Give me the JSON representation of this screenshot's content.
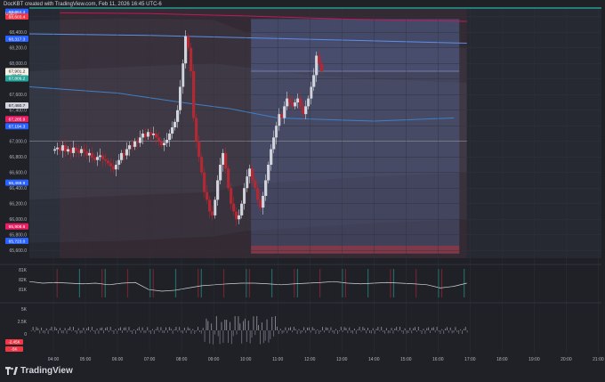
{
  "header": {
    "text": "DocKBT created with TradingView.com, Feb 11, 2026 16:45 UTC-6",
    "quote_unit": "USDT"
  },
  "footer": {
    "brand": "TradingView"
  },
  "colors": {
    "background": "#1f2127",
    "up_candle": "#d1d4dc",
    "down_candle": "#b22833",
    "red_band": "#f23645",
    "blue_line": "#4a7fd6",
    "position_box": "#5b6fa8",
    "position_stop": "#e04c63",
    "teal": "#26a69a"
  },
  "chart_data": [
    {
      "type": "candlestick",
      "pane": "price",
      "ylabel": "USDT",
      "ylim": [
        65500,
        68700
      ],
      "y_ticks": [
        65600,
        65800,
        66000,
        66200,
        66400,
        66600,
        66800,
        67000,
        67200,
        67400,
        67600,
        67800,
        68000,
        68200,
        68400,
        68600
      ],
      "x_tick_labels": [
        "04:00",
        "05:00",
        "06:00",
        "07:00",
        "08:00",
        "09:00",
        "10:00",
        "11:00",
        "12:00",
        "13:00",
        "14:00",
        "15:00",
        "16:00",
        "17:00",
        "18:00",
        "19:00",
        "20:00",
        "21:00"
      ],
      "x_range_hours": [
        3.25,
        21.1
      ],
      "price_badges": [
        {
          "label": "68,664.3",
          "color": "#2962ff"
        },
        {
          "label": "68,603.4",
          "color": "#f23645"
        },
        {
          "label": "68,317.3",
          "color": "#2962ff"
        },
        {
          "label": "67,901.2",
          "sub": "02:55",
          "color": "#f5f0e6"
        },
        {
          "label": "67,809.2",
          "color": "#26a69a"
        },
        {
          "label": "67,460.7",
          "color": "#d1d4dc"
        },
        {
          "label": "67,285.9",
          "color": "#e91e63"
        },
        {
          "label": "67,194.3",
          "color": "#2962ff"
        },
        {
          "label": "66,469.9",
          "color": "#2962ff"
        },
        {
          "label": "65,908.6",
          "color": "#e91e63"
        },
        {
          "label": "65,723.0",
          "color": "#2962ff"
        }
      ],
      "series": [
        {
          "name": "close",
          "x_start": "04:00",
          "interval_minutes": 5,
          "values": [
            66900,
            66920,
            66880,
            66950,
            66870,
            66900,
            66850,
            66920,
            66880,
            66850,
            66900,
            66870,
            66820,
            66850,
            66790,
            66760,
            66800,
            66820,
            66770,
            66750,
            66720,
            66680,
            66640,
            66700,
            66760,
            66850,
            66820,
            66900,
            66950,
            66930,
            67000,
            66980,
            67050,
            67100,
            67060,
            67120,
            67080,
            67100,
            67050,
            67000,
            66950,
            66980,
            67020,
            67100,
            67180,
            67250,
            67400,
            67700,
            68000,
            68350,
            68200,
            67900,
            67300,
            67000,
            66800,
            66600,
            66350,
            66250,
            66100,
            66050,
            66250,
            66500,
            66700,
            66850,
            66650,
            66400,
            66200,
            66100,
            66000,
            66050,
            66200,
            66400,
            66550,
            66650,
            66500,
            66400,
            66250,
            66150,
            66300,
            66500,
            66700,
            66900,
            67050,
            67200,
            67350,
            67300,
            67450,
            67550,
            67500,
            67450,
            67500,
            67550,
            67450,
            67350,
            67450,
            67550,
            67700,
            67850,
            68100,
            68000,
            67900
          ]
        }
      ],
      "reference_lines": [
        {
          "name": "red-dynamic-level",
          "values": [
            68650,
            68640,
            68610,
            68570,
            68540
          ]
        },
        {
          "name": "blue-dynamic-level",
          "values": [
            68380,
            68360,
            68330,
            68300,
            68260
          ]
        },
        {
          "name": "slow-average",
          "values": [
            67700,
            67620,
            67500,
            67420,
            67300,
            67260,
            67300
          ]
        },
        {
          "name": "horizontal-level",
          "values": [
            67000
          ]
        }
      ],
      "long_position": {
        "start": "10:10",
        "end": "16:40",
        "entry": 67900,
        "target": 68570,
        "stop": 65660,
        "bottom": 65560
      }
    },
    {
      "type": "line",
      "pane": "indicator-1",
      "y_tick_labels": [
        "81K",
        "82K",
        "81K"
      ],
      "series": [
        {
          "values": [
            0.55,
            0.5,
            0.52,
            0.5,
            0.48,
            0.5,
            0.45,
            0.5,
            0.52,
            0.3,
            0.25,
            0.28,
            0.35,
            0.42,
            0.45,
            0.48,
            0.5,
            0.5,
            0.48,
            0.45,
            0.48,
            0.5,
            0.52,
            0.55,
            0.5,
            0.48,
            0.5,
            0.52,
            0.5,
            0.48,
            0.45,
            0.35,
            0.4,
            0.5
          ]
        }
      ]
    },
    {
      "type": "bar",
      "pane": "indicator-2",
      "y_tick_labels": [
        "5K",
        "2.5K",
        "0"
      ],
      "badges": [
        {
          "label": "-2.45K",
          "color": "#f23645"
        },
        {
          "label": "-5K",
          "color": "#f23645"
        }
      ]
    }
  ]
}
